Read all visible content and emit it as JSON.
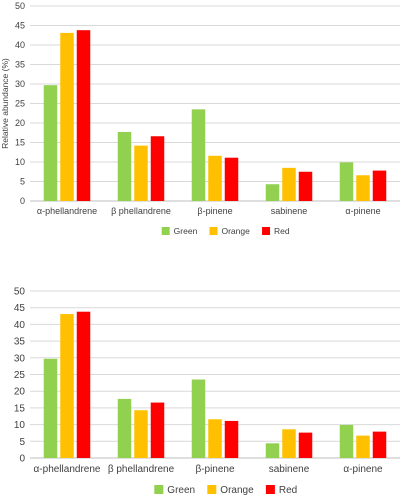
{
  "colors": {
    "green": "#92d050",
    "orange": "#ffc000",
    "red": "#ff0000",
    "grid": "#d9d9d9",
    "text": "#404040"
  },
  "chart_data": [
    {
      "type": "bar",
      "title": "",
      "xlabel": "",
      "ylabel": "Relative abundance (%)",
      "ylim": [
        0,
        50
      ],
      "yticks": [
        0,
        5,
        10,
        15,
        20,
        25,
        30,
        35,
        40,
        45,
        50
      ],
      "grid": true,
      "legend_position": "bottom",
      "categories": [
        "α-phellandrene",
        "β phellandrene",
        "β-pinene",
        "sabinene",
        "α-pinene"
      ],
      "series": [
        {
          "name": "Green",
          "color": "#92d050",
          "values": [
            29.7,
            17.7,
            23.5,
            4.3,
            9.9
          ]
        },
        {
          "name": "Orange",
          "color": "#ffc000",
          "values": [
            43.1,
            14.2,
            11.6,
            8.5,
            6.6
          ]
        },
        {
          "name": "Red",
          "color": "#ff0000",
          "values": [
            43.8,
            16.6,
            11.1,
            7.5,
            7.8
          ]
        }
      ]
    },
    {
      "type": "bar",
      "title": "",
      "xlabel": "",
      "ylabel": "",
      "ylim": [
        0,
        50
      ],
      "yticks": [
        0,
        5,
        10,
        15,
        20,
        25,
        30,
        35,
        40,
        45,
        50
      ],
      "grid": true,
      "legend_position": "bottom",
      "categories": [
        "α-phellandrene",
        "β phellandrene",
        "β-pinene",
        "sabinene",
        "α-pinene"
      ],
      "series": [
        {
          "name": "Green",
          "color": "#92d050",
          "values": [
            29.7,
            17.7,
            23.5,
            4.4,
            9.9
          ]
        },
        {
          "name": "Orange",
          "color": "#ffc000",
          "values": [
            43.1,
            14.3,
            11.6,
            8.6,
            6.7
          ]
        },
        {
          "name": "Red",
          "color": "#ff0000",
          "values": [
            43.8,
            16.6,
            11.1,
            7.6,
            7.9
          ]
        }
      ]
    }
  ]
}
